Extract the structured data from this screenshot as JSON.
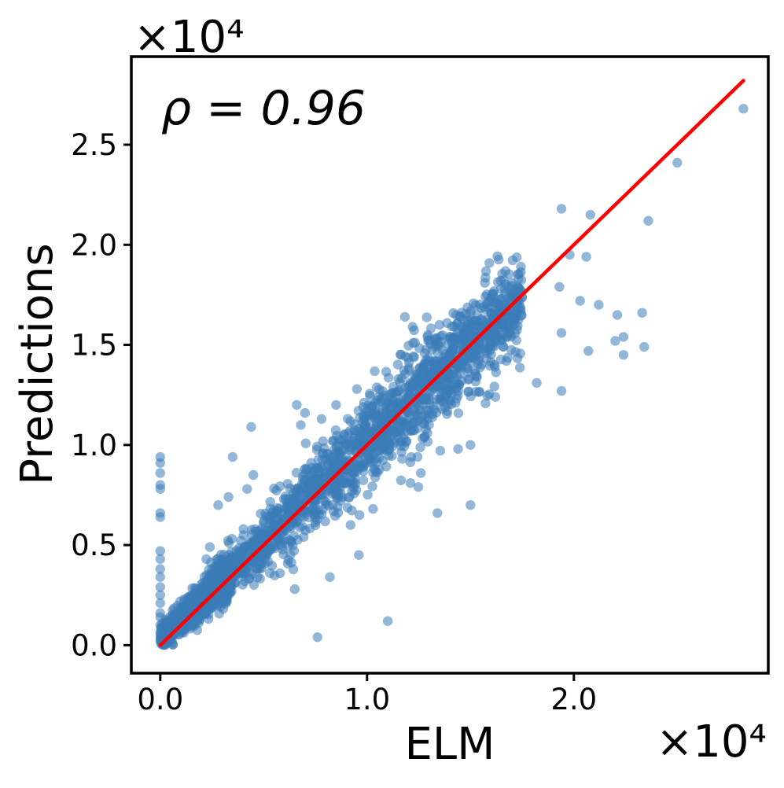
{
  "chart_data": {
    "type": "scatter",
    "title": "",
    "xlabel": "ELM",
    "ylabel": "Predictions",
    "annotation": "ρ = 0.96",
    "x_offset_label": "×10⁴",
    "y_offset_label": "×10⁴",
    "xlim": [
      -0.14,
      2.94
    ],
    "ylim": [
      -0.14,
      2.94
    ],
    "x_ticks": [
      0.0,
      1.0,
      2.0
    ],
    "x_tick_labels": [
      "0.0",
      "1.0",
      "2.0"
    ],
    "y_ticks": [
      0.0,
      0.5,
      1.0,
      1.5,
      2.0,
      2.5
    ],
    "y_tick_labels": [
      "0.0",
      "0.5",
      "1.0",
      "1.5",
      "2.0",
      "2.5"
    ],
    "grid": false,
    "units_multiplier": 10000,
    "point_color": "#3b7bb8",
    "line_color": "#ff0000",
    "fit_line": {
      "x": [
        0.0,
        2.82
      ],
      "y": [
        0.0,
        2.82
      ]
    },
    "points": [
      [
        2.82,
        2.68
      ],
      [
        2.5,
        2.41
      ],
      [
        2.36,
        2.12
      ],
      [
        2.08,
        2.15
      ],
      [
        1.94,
        2.18
      ],
      [
        1.98,
        1.95
      ],
      [
        2.06,
        1.94
      ],
      [
        1.93,
        1.79
      ],
      [
        2.03,
        1.72
      ],
      [
        2.12,
        1.7
      ],
      [
        2.21,
        1.65
      ],
      [
        2.33,
        1.66
      ],
      [
        2.2,
        1.52
      ],
      [
        2.24,
        1.54
      ],
      [
        2.34,
        1.49
      ],
      [
        2.24,
        1.45
      ],
      [
        2.07,
        1.47
      ],
      [
        1.94,
        1.56
      ],
      [
        1.94,
        1.27
      ],
      [
        1.82,
        1.31
      ],
      [
        1.6,
        1.59
      ],
      [
        1.4,
        1.33
      ],
      [
        1.22,
        1.59
      ],
      [
        1.35,
        1.6
      ],
      [
        1.62,
        1.24
      ],
      [
        0.7,
        1.16
      ],
      [
        0.66,
        1.2
      ],
      [
        0.68,
        1.1
      ],
      [
        0.78,
        1.13
      ],
      [
        0.85,
        1.2
      ],
      [
        0.44,
        1.09
      ],
      [
        0.35,
        0.94
      ],
      [
        0.45,
        0.85
      ],
      [
        1.5,
        0.7
      ],
      [
        1.34,
        0.66
      ],
      [
        1.1,
        0.12
      ],
      [
        0.76,
        0.04
      ],
      [
        0.0,
        0.94
      ],
      [
        0.0,
        0.91
      ],
      [
        0.0,
        0.86
      ],
      [
        0.0,
        0.8
      ],
      [
        0.0,
        0.78
      ],
      [
        0.0,
        0.66
      ],
      [
        0.0,
        0.64
      ],
      [
        0.0,
        0.47
      ],
      [
        0.0,
        0.43
      ],
      [
        0.0,
        0.38
      ],
      [
        0.0,
        0.34
      ],
      [
        0.0,
        0.29
      ],
      [
        0.0,
        0.25
      ],
      [
        0.0,
        0.21
      ],
      [
        0.0,
        0.16
      ],
      [
        0.0,
        0.14
      ],
      [
        0.0,
        0.1
      ],
      [
        0.0,
        0.06
      ],
      [
        0.65,
        0.28
      ],
      [
        0.82,
        0.34
      ],
      [
        0.96,
        0.45
      ],
      [
        1.21,
        0.81
      ],
      [
        1.26,
        0.86
      ],
      [
        1.44,
        0.98
      ],
      [
        1.5,
        1.0
      ],
      [
        0.42,
        0.78
      ],
      [
        0.33,
        0.74
      ],
      [
        0.28,
        0.7
      ],
      [
        0.86,
        0.76
      ],
      [
        0.92,
        0.6
      ],
      [
        1.17,
        0.93
      ],
      [
        0.24,
        0.49
      ],
      [
        0.53,
        0.36
      ]
    ]
  }
}
